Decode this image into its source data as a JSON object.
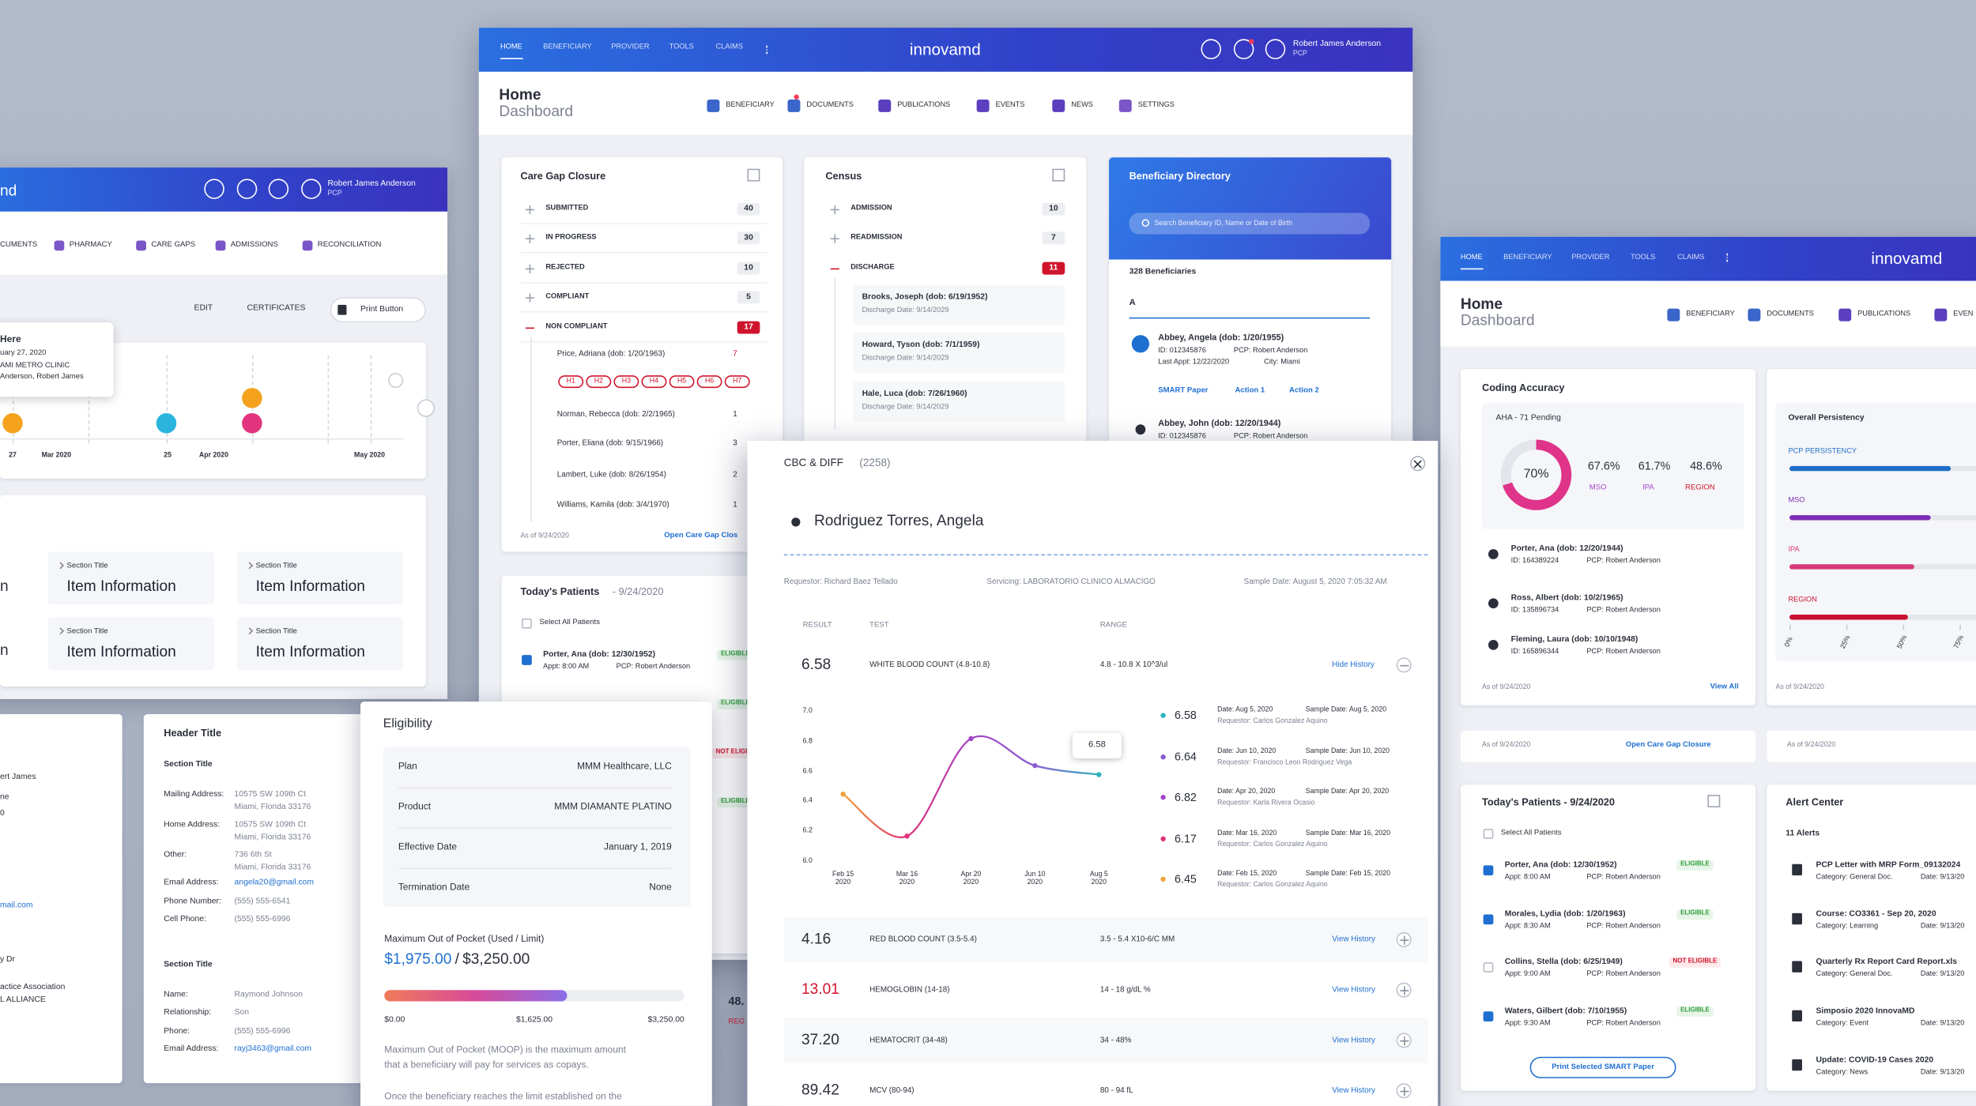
{
  "left_window": {
    "brand": "nd",
    "user": "Robert James Anderson",
    "role": "PCP",
    "nav": [
      "CUMENTS",
      "PHARMACY",
      "CARE GAPS",
      "ADMISSIONS",
      "RECONCILIATION"
    ],
    "actions": [
      "EDIT",
      "CERTIFICATES",
      "Print Button"
    ],
    "tooltip": [
      "Here",
      "uary 27, 2020",
      "AMI METRO CLINIC",
      "Anderson, Robert James"
    ],
    "timeline": [
      "27",
      "Mar 2020",
      "25",
      "Apr 2020",
      "May 2020"
    ],
    "fragments": [
      "n",
      "n"
    ],
    "sections": [
      {
        "title": "Section Title",
        "item": "Item Information"
      },
      {
        "title": "Section Title",
        "item": "Item Information"
      },
      {
        "title": "Section Title",
        "item": "Item Information"
      },
      {
        "title": "Section Title",
        "item": "Item Information"
      }
    ]
  },
  "contact_fragment": [
    "ert James",
    "ne",
    "0",
    "mail.com",
    "y Dr",
    "actice Association",
    "L ALLIANCE"
  ],
  "header_card": {
    "title": "Header Title",
    "sections": [
      {
        "title": "Section Title",
        "rows": [
          {
            "label": "Mailing Address:",
            "value": [
              "10575 SW 109th Ct",
              "Miami, Florida 33176"
            ]
          },
          {
            "label": "Home Address:",
            "value": [
              "10575 SW 109th Ct",
              "Miami, Florida 33176"
            ]
          },
          {
            "label": "Other:",
            "value": [
              "736 6th St",
              "Miami, Florida 33176"
            ]
          },
          {
            "label": "Email Address:",
            "value": [
              "angela20@gmail.com"
            ]
          },
          {
            "label": "Phone Number:",
            "value": [
              "(555) 555-6541"
            ]
          },
          {
            "label": "Cell Phone:",
            "value": [
              "(555) 555-6996"
            ]
          }
        ]
      },
      {
        "title": "Section Title",
        "rows": [
          {
            "label": "Name:",
            "value": [
              "Raymond Johnson"
            ]
          },
          {
            "label": "Relationship:",
            "value": [
              "Son"
            ]
          },
          {
            "label": "Phone:",
            "value": [
              "(555) 555-6996"
            ]
          },
          {
            "label": "Email Address:",
            "value": [
              "rayj3463@gmail.com"
            ]
          }
        ]
      }
    ]
  },
  "main_window": {
    "nav": [
      "HOME",
      "BENEFICIARY",
      "PROVIDER",
      "TOOLS",
      "CLAIMS"
    ],
    "brand": "innovamd",
    "user": "Robert James Anderson",
    "role": "PCP",
    "page": "Home",
    "subpage": "Dashboard",
    "subnav": [
      "BENEFICIARY",
      "DOCUMENTS",
      "PUBLICATIONS",
      "EVENTS",
      "NEWS",
      "SETTINGS"
    ],
    "care_gap": {
      "title": "Care Gap Closure",
      "rows": [
        {
          "label": "SUBMITTED",
          "count": 40
        },
        {
          "label": "IN PROGRESS",
          "count": 30
        },
        {
          "label": "REJECTED",
          "count": 10
        },
        {
          "label": "COMPLIANT",
          "count": 5
        },
        {
          "label": "NON COMPLIANT",
          "count": 17
        }
      ],
      "patients": [
        {
          "name": "Price, Adriana (dob: 1/20/1963)",
          "count": 7
        },
        {
          "name": "Norman, Rebecca (dob: 2/2/1965)",
          "count": 1
        },
        {
          "name": "Porter, Eliana (dob: 9/15/1966)",
          "count": 3
        },
        {
          "name": "Lambert, Luke (dob: 8/26/1954)",
          "count": 2
        },
        {
          "name": "Williams, Kamila (dob: 3/4/1970)",
          "count": 1
        }
      ],
      "tags": [
        "H1",
        "H2",
        "H3",
        "H4",
        "H5",
        "H6",
        "H7"
      ],
      "as_of": "As of 9/24/2020",
      "link": "Open Care Gap Clos"
    },
    "census": {
      "title": "Census",
      "rows": [
        {
          "label": "ADMISSION",
          "count": 10
        },
        {
          "label": "READMISSION",
          "count": 7
        },
        {
          "label": "DISCHARGE",
          "count": 11
        }
      ],
      "patients": [
        {
          "name": "Brooks, Joseph (dob: 6/19/1952)",
          "date": "Discharge Date: 9/14/2029"
        },
        {
          "name": "Howard, Tyson (dob: 7/1/1959)",
          "date": "Discharge Date: 9/14/2029"
        },
        {
          "name": "Hale, Luca (dob: 7/26/1960)",
          "date": "Discharge Date: 9/14/2029"
        }
      ]
    },
    "directory": {
      "title": "Beneficiary Directory",
      "search": "Search Beneficiary ID, Name or Date of Birth",
      "count": "328 Beneficiaries",
      "letter": "A",
      "people": [
        {
          "name": "Abbey, Angela (dob: 1/20/1955)",
          "id": "ID: 012345876",
          "pcp": "PCP: Robert Anderson",
          "appt": "Last Appt: 12/22/2020",
          "city": "City: Miami"
        },
        {
          "name": "Abbey, John (dob: 12/20/1944)",
          "id": "ID: 012345876",
          "pcp": "PCP: Robert Anderson"
        }
      ],
      "actions": [
        "SMART Paper",
        "Action 1",
        "Action 2"
      ]
    },
    "patients": {
      "title": "Today's Patients",
      "date": "- 9/24/2020",
      "select_all": "Select All Patients",
      "name": "Porter, Ana (dob: 12/30/1952)",
      "appt": "Appt: 8:00 AM",
      "pcp": "PCP: Robert Anderson",
      "status": [
        "ELIGIBLE",
        "ELIGIBLE",
        "NOT ELIGIB",
        "ELIGIBLE"
      ]
    },
    "fragments": [
      "48.",
      "REG"
    ]
  },
  "eligibility": {
    "title": "Eligibility",
    "rows": [
      {
        "label": "Plan",
        "value": "MMM Healthcare, LLC"
      },
      {
        "label": "Product",
        "value": "MMM DIAMANTE PLATINO"
      },
      {
        "label": "Effective Date",
        "value": "January 1, 2019"
      },
      {
        "label": "Termination Date",
        "value": "None"
      }
    ],
    "moop": {
      "title": "Maximum Out of Pocket (Used / Limit)",
      "used": {
        "value": 1975,
        "label": "$1,975.00"
      },
      "separator": "/",
      "limit": {
        "value": 3250,
        "label": "$3,250.00"
      },
      "xlim": [
        0,
        3250
      ],
      "xticks": [
        {
          "value": 0,
          "label": "$0.00"
        },
        {
          "value": 1625,
          "label": "$1,625.00"
        },
        {
          "value": 3250,
          "label": "$3,250.00"
        }
      ]
    },
    "text": [
      "Maximum Out of Pocket (MOOP) is the maximum amount",
      "that a beneficiary will pay for services as copays.",
      "Once the beneficiary reaches the limit established on the"
    ]
  },
  "cbc": {
    "title": "CBC & DIFF",
    "count": "(2258)",
    "patient": "Rodriguez Torres, Angela",
    "requestor": "Requestor: Richard Baez Tellado",
    "servicing": "Servicing: LABORATORIO CLINICO ALMACIGO",
    "sample_date": "Sample Date: August 5, 2020 7:05:32 AM",
    "headers": [
      "RESULT",
      "TEST",
      "RANGE"
    ],
    "tests": [
      {
        "result": "6.58",
        "test": "WHITE BLOOD COUNT (4.8-10.8)",
        "range": "4.8 - 10.8 X 10^3/ul",
        "action": "Hide History"
      },
      {
        "result": "4.16",
        "test": "RED BLOOD COUNT (3.5-5.4)",
        "range": "3.5 - 5.4 X10-6/C MM",
        "action": "View History"
      },
      {
        "result": "13.01",
        "test": "HEMOGLOBIN (14-18)",
        "range": "14 - 18 g/dL %",
        "action": "View History"
      },
      {
        "result": "37.20",
        "test": "HEMATOCRIT (34-48)",
        "range": "34 - 48%",
        "action": "View History"
      },
      {
        "result": "89.42",
        "test": "MCV (80-94)",
        "range": "80 - 94 fL",
        "action": "View History"
      }
    ],
    "chart": {
      "type": "line",
      "categories": [
        "Feb 15\n2020",
        "Mar 16\n2020",
        "Apr 20\n2020",
        "Jun 10\n2020",
        "Aug 5\n2020"
      ],
      "values": [
        6.45,
        6.17,
        6.82,
        6.64,
        6.58
      ],
      "colors": [
        "#f0a23a",
        "#e0307a",
        "#a346c8",
        "#8a5bd0",
        "#2bb3c0"
      ],
      "ylim": [
        6.0,
        7.0
      ],
      "yticks": [
        {
          "value": 7.0,
          "label": "7.0"
        },
        6.8,
        6.6,
        6.4,
        6.2,
        {
          "value": 6.0,
          "label": "6.0"
        }
      ],
      "history": [
        {
          "date": "Date: Feb 15, 2020",
          "sample": "Sample Date: Feb 15, 2020",
          "requestor": "Requestor: Carlos Gonzalez Aquino"
        },
        {
          "date": "Date: Mar 16, 2020",
          "sample": "Sample Date: Mar 16, 2020",
          "requestor": "Requestor: Carlos Gonzalez Aquino"
        },
        {
          "date": "Date: Apr 20, 2020",
          "sample": "Sample Date: Apr 20, 2020",
          "requestor": "Requestor: Karla Rivera Ocasio"
        },
        {
          "date": "Date: Jun 10, 2020",
          "sample": "Sample Date: Jun 10, 2020",
          "requestor": "Requestor: Francisco Leon Rodriguez Vega"
        },
        {
          "date": "Date: Aug 5, 2020",
          "sample": "Sample Date: Aug 5, 2020",
          "requestor": "Requestor: Carlos Gonzalez Aquino"
        }
      ]
    }
  },
  "right_window": {
    "nav": [
      "HOME",
      "BENEFICIARY",
      "PROVIDER",
      "TOOLS",
      "CLAIMS"
    ],
    "brand": "innovamd",
    "page": "Home",
    "subpage": "Dashboard",
    "subnav": [
      "BENEFICIARY",
      "DOCUMENTS",
      "PUBLICATIONS",
      "EVEN"
    ],
    "coding": {
      "title": "Coding Accuracy",
      "pending": "AHA - 71 Pending",
      "donut": {
        "value": 70,
        "label": "70%"
      },
      "stats": [
        {
          "value": "67.6%",
          "label": "MSO"
        },
        {
          "value": "61.7%",
          "label": "IPA"
        },
        {
          "value": "48.6%",
          "label": "REGION"
        }
      ],
      "patients": [
        {
          "name": "Porter, Ana (dob: 12/20/1944)",
          "id": "ID: 164389224",
          "pcp": "PCP: Robert Anderson"
        },
        {
          "name": "Ross, Albert (dob: 10/2/1965)",
          "id": "ID: 135896734",
          "pcp": "PCP: Robert Anderson"
        },
        {
          "name": "Fleming, Laura (dob: 10/10/1948)",
          "id": "ID: 165896344",
          "pcp": "PCP: Robert Anderson"
        }
      ],
      "as_of": "As of 9/24/2020",
      "link": "View All"
    },
    "persistency": {
      "type": "bar",
      "title": "Overall Persistency",
      "series": [
        {
          "name": "PCP PERSISTENCY",
          "color": "#1e6fc8",
          "value": 71
        },
        {
          "name": "MSO",
          "color": "#7a2db4",
          "value": 62
        },
        {
          "name": "IPA",
          "color": "#d63a78",
          "value": 55
        },
        {
          "name": "REGION",
          "color": "#c8102e",
          "value": 52
        }
      ],
      "xlim": [
        0,
        100
      ],
      "xticks": [
        {
          "value": 0,
          "label": "0%"
        },
        {
          "value": 25,
          "label": "25%"
        },
        {
          "value": 50,
          "label": "50%"
        },
        {
          "value": 75,
          "label": "75%"
        }
      ],
      "as_of": "As of 9/24/2020"
    },
    "strip": [
      "As of 9/24/2020",
      "Open Care Gap Closure",
      "As of 9/24/2020"
    ],
    "patients": {
      "title": "Today's Patients - 9/24/2020",
      "select_all": "Select All Patients",
      "rows": [
        {
          "name": "Porter, Ana  (dob: 12/30/1952)",
          "appt": "Appt: 8:00 AM",
          "pcp": "PCP: Robert Anderson",
          "status": "ELIGIBLE",
          "checked": true
        },
        {
          "name": "Morales, Lydia  (dob: 1/20/1963)",
          "appt": "Appt: 8:30 AM",
          "pcp": "PCP: Robert Anderson",
          "status": "ELIGIBLE",
          "checked": true
        },
        {
          "name": "Collins, Stella  (dob: 6/25/1949)",
          "appt": "Appt: 9:00 AM",
          "pcp": "PCP: Robert Anderson",
          "status": "NOT ELIGIBLE",
          "checked": false
        },
        {
          "name": "Waters, Gilbert  (dob: 7/10/1955)",
          "appt": "Appt: 9:30 AM",
          "pcp": "PCP: Robert Anderson",
          "status": "ELIGIBLE",
          "checked": true
        }
      ],
      "button": "Print Selected SMART Paper"
    },
    "alerts": {
      "title": "Alert Center",
      "count": "11 Alerts",
      "items": [
        {
          "title": "PCP Letter with MRP Form_09132024",
          "category": "Category: General Doc.",
          "date": "Date: 9/13/20"
        },
        {
          "title": "Course: CO3361 - Sep 20, 2020",
          "category": "Category: Learning",
          "date": "Date: 9/13/20"
        },
        {
          "title": "Quarterly Rx Report Card Report.xls",
          "category": "Category: General Doc.",
          "date": "Date: 9/13/20"
        },
        {
          "title": "Simposio 2020 InnovaMD",
          "category": "Category: Event",
          "date": "Date: 9/13/20"
        },
        {
          "title": "Update: COVID-19 Cases 2020",
          "category": "Category: News",
          "date": "Date: 9/13/20"
        }
      ]
    }
  }
}
